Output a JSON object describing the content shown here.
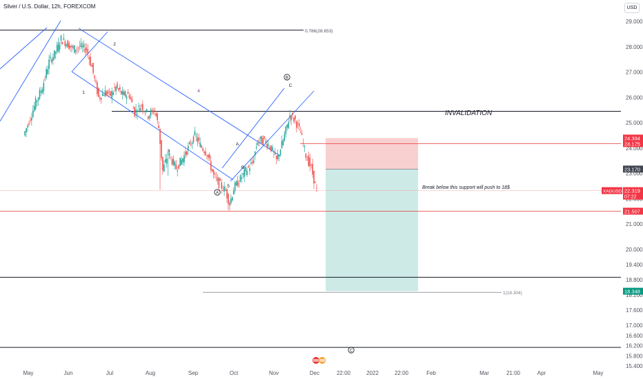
{
  "header": {
    "symbol_title": "Silver / U.S. Dollar, 12h, FOREXCOM",
    "currency_button": "USD"
  },
  "colors": {
    "channel": "#2962ff",
    "bull": "#26a69a",
    "bear": "#ef5350",
    "stop_zone": "#f9d0d0",
    "target_zone": "#cdeae7",
    "resistance_line": "#131722",
    "support_line": "#e53935",
    "invalidation_line": "#e53935",
    "label_red": "#f23645",
    "label_dark": "#434651",
    "label_green": "#089981",
    "wave_label": "#131722",
    "wave4_label": "#9c27b0"
  },
  "chart_data": {
    "type": "candlestick",
    "title": "Silver / U.S. Dollar, 12h, FOREXCOM",
    "y_range": [
      15.4,
      29.3
    ],
    "y_ticks": [
      "29.000",
      "28.000",
      "27.000",
      "26.000",
      "25.000",
      "24.000",
      "23.000",
      "22.000",
      "21.000",
      "20.000",
      "19.400",
      "18.800",
      "18.200",
      "17.600",
      "17.000",
      "16.600",
      "16.200",
      "15.800",
      "15.400"
    ],
    "x_ticks": [
      "May",
      "Jun",
      "Jul",
      "Aug",
      "Sep",
      "Oct",
      "Nov",
      "Dec",
      "22:00",
      "2022",
      "22:00",
      "Feb",
      "Mar",
      "21:00",
      "Apr",
      "May"
    ],
    "price_path": [
      [
        "Apr 28",
        24.5
      ],
      [
        "May 3",
        25.2
      ],
      [
        "May 7",
        25.8
      ],
      [
        "May 12",
        26.4
      ],
      [
        "May 17",
        27.4
      ],
      [
        "May 21",
        27.7
      ],
      [
        "May 26",
        28.3
      ],
      [
        "May 31",
        28.1
      ],
      [
        "Jun 4",
        27.9
      ],
      [
        "Jun 9",
        28.0
      ],
      [
        "Jun 14",
        27.9
      ],
      [
        "Jun 18",
        27.2
      ],
      [
        "Jun 23",
        26.0
      ],
      [
        "Jun 28",
        26.2
      ],
      [
        "Jul 2",
        26.1
      ],
      [
        "Jul 6",
        26.4
      ],
      [
        "Jul 11",
        26.1
      ],
      [
        "Jul 16",
        26.1
      ],
      [
        "Jul 20",
        25.4
      ],
      [
        "Jul 25",
        25.7
      ],
      [
        "Jul 30",
        25.3
      ],
      [
        "Aug 4",
        25.5
      ],
      [
        "Aug 7",
        24.8
      ],
      [
        "Aug 10",
        23.1
      ],
      [
        "Aug 14",
        23.8
      ],
      [
        "Aug 20",
        23.2
      ],
      [
        "Aug 25",
        23.6
      ],
      [
        "Aug 30",
        24.1
      ],
      [
        "Sep 3",
        24.5
      ],
      [
        "Sep 7",
        24.1
      ],
      [
        "Sep 12",
        23.8
      ],
      [
        "Sep 17",
        22.9
      ],
      [
        "Sep 21",
        22.6
      ],
      [
        "Sep 26",
        22.3
      ],
      [
        "Sep 29",
        21.8
      ],
      [
        "Oct 2",
        22.4
      ],
      [
        "Oct 6",
        22.7
      ],
      [
        "Oct 11",
        23.1
      ],
      [
        "Oct 16",
        23.4
      ],
      [
        "Oct 20",
        24.3
      ],
      [
        "Oct 25",
        24.3
      ],
      [
        "Oct 30",
        24.0
      ],
      [
        "Nov 3",
        23.5
      ],
      [
        "Nov 8",
        24.3
      ],
      [
        "Nov 13",
        25.3
      ],
      [
        "Nov 17",
        25.1
      ],
      [
        "Nov 21",
        24.6
      ],
      [
        "Nov 25",
        23.7
      ],
      [
        "Nov 29",
        23.2
      ],
      [
        "Dec 3",
        22.319
      ]
    ],
    "horizontal_levels": [
      {
        "price": 28.653,
        "label": "0.786(28.653)",
        "style": "fib"
      },
      {
        "price": 25.45,
        "label": "",
        "style": "resistance"
      },
      {
        "price": 24.175,
        "label": "24.175",
        "style": "invalidation"
      },
      {
        "price": 21.507,
        "label": "21.507",
        "style": "support"
      },
      {
        "price": 18.9,
        "label": "",
        "style": "support_dark"
      },
      {
        "price": 18.304,
        "label": "1(18.304)",
        "style": "fib"
      },
      {
        "price": 16.13,
        "label": "",
        "style": "support_dark"
      }
    ],
    "short_position": {
      "entry": 23.17,
      "stop": 24.394,
      "target": 18.348,
      "start": "Dec 10",
      "end": "Jan 25"
    },
    "price_labels": [
      {
        "price": 24.394,
        "text": "24.394",
        "color": "red"
      },
      {
        "price": 24.175,
        "text": "24.175",
        "color": "red"
      },
      {
        "price": 23.17,
        "text": "23.170",
        "color": "dark"
      },
      {
        "price": 22.319,
        "text": "22.319",
        "color": "red",
        "prefix": "XAGUSD",
        "countdown": "07:22"
      },
      {
        "price": 21.507,
        "text": "21.507",
        "color": "red"
      },
      {
        "price": 18.348,
        "text": "18.348",
        "color": "green"
      }
    ],
    "annotations": {
      "invalidation": "INVALIDATION",
      "break_note": "Break below this support will push to 18$",
      "wave_1": "1",
      "wave_2": "2",
      "wave_3": "3",
      "wave_4": "4",
      "wave_5": "5",
      "wave_A": "A",
      "wave_B": "B",
      "wave_C": "C",
      "wave_A_circle": "A",
      "wave_B_circle": "B",
      "wave_C_circle": "C"
    }
  }
}
